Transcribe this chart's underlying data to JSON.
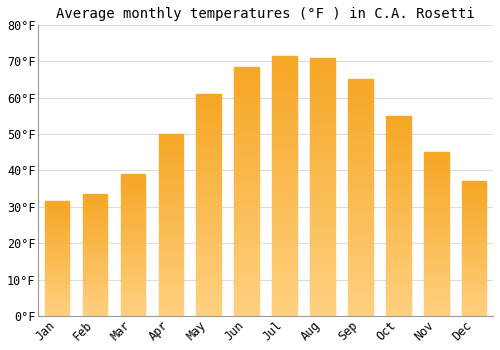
{
  "title": "Average monthly temperatures (°F ) in C.A. Rosetti",
  "months": [
    "Jan",
    "Feb",
    "Mar",
    "Apr",
    "May",
    "Jun",
    "Jul",
    "Aug",
    "Sep",
    "Oct",
    "Nov",
    "Dec"
  ],
  "values": [
    31.5,
    33.5,
    39,
    50,
    61,
    68.5,
    71.5,
    71,
    65,
    55,
    45,
    37
  ],
  "bar_color_top": "#F5A623",
  "bar_color_bottom": "#FFD080",
  "background_color": "#FFFFFF",
  "grid_color": "#DDDDDD",
  "ylim": [
    0,
    80
  ],
  "yticks": [
    0,
    10,
    20,
    30,
    40,
    50,
    60,
    70,
    80
  ],
  "ytick_labels": [
    "0°F",
    "10°F",
    "20°F",
    "30°F",
    "40°F",
    "50°F",
    "60°F",
    "70°F",
    "80°F"
  ],
  "title_fontsize": 10,
  "tick_fontsize": 8.5,
  "font_family": "monospace",
  "bar_width": 0.65
}
